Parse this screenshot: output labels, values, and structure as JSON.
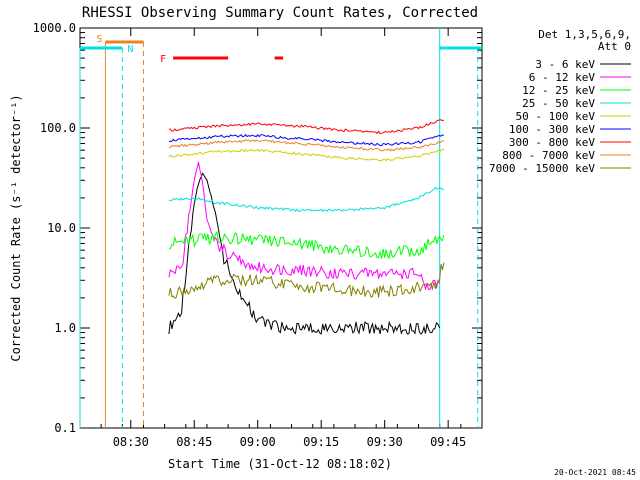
{
  "chart_data": {
    "type": "line",
    "title": "RHESSI Observing Summary Count Rates, Corrected",
    "ylabel": "Corrected Count Rate (s⁻¹ detector⁻¹)",
    "xlabel": "Start Time (31-Oct-12 08:18:02)",
    "xlim": [
      "08:18",
      "09:53"
    ],
    "ylim": [
      0.1,
      1000.0
    ],
    "yscale": "log",
    "x_ticks": [
      "08:30",
      "08:45",
      "09:00",
      "09:15",
      "09:30",
      "09:45"
    ],
    "y_ticks": [
      "0.1",
      "1.0",
      "10.0",
      "100.0",
      "1000.0"
    ],
    "legend_header": [
      "Det 1,3,5,6,9,",
      "Att 0"
    ],
    "legend_position": "top-right",
    "timestamp": "20-Oct-2021 08:45",
    "flags": [
      {
        "label": "S",
        "color": "#f08020"
      },
      {
        "label": "N",
        "color": "#00e0e0"
      },
      {
        "label": "F",
        "color": "#ff0000"
      }
    ],
    "series": [
      {
        "name": "3 - 6 keV",
        "color": "#000000",
        "x": [
          "08:39",
          "08:42",
          "08:44",
          "08:45",
          "08:46",
          "08:47",
          "08:48",
          "08:50",
          "08:52",
          "08:55",
          "08:58",
          "09:00",
          "09:05",
          "09:10",
          "09:20",
          "09:30",
          "09:40",
          "09:43"
        ],
        "y": [
          1.0,
          1.5,
          8,
          18,
          28,
          35,
          30,
          14,
          5,
          2.5,
          1.6,
          1.2,
          1.0,
          1.0,
          1.0,
          1.0,
          1.0,
          1.0
        ]
      },
      {
        "name": "6 - 12 keV",
        "color": "#ff00ff",
        "x": [
          "08:39",
          "08:42",
          "08:44",
          "08:45",
          "08:46",
          "08:47",
          "08:48",
          "08:50",
          "08:52",
          "08:55",
          "09:00",
          "09:10",
          "09:20",
          "09:30",
          "09:38",
          "09:40",
          "09:43"
        ],
        "y": [
          3.5,
          4,
          15,
          30,
          45,
          28,
          12,
          7,
          6,
          5,
          4,
          3.8,
          3.5,
          3.5,
          3.5,
          2.5,
          2.8
        ]
      },
      {
        "name": "12 - 25 keV",
        "color": "#00ff00",
        "x": [
          "08:39",
          "08:45",
          "08:50",
          "09:00",
          "09:10",
          "09:20",
          "09:30",
          "09:38",
          "09:42",
          "09:44"
        ],
        "y": [
          7,
          7.5,
          8,
          7.5,
          7,
          6,
          5.5,
          6,
          7.5,
          8.5
        ]
      },
      {
        "name": "25 - 50 keV",
        "color": "#00e0e0",
        "x": [
          "08:39",
          "08:45",
          "08:50",
          "09:00",
          "09:10",
          "09:20",
          "09:30",
          "09:38",
          "09:42",
          "09:44"
        ],
        "y": [
          19,
          20,
          18,
          16,
          15,
          15,
          16,
          20,
          25,
          24
        ]
      },
      {
        "name": "50 - 100 keV",
        "color": "#d0d000",
        "x": [
          "08:39",
          "08:45",
          "08:50",
          "09:00",
          "09:10",
          "09:20",
          "09:30",
          "09:38",
          "09:42",
          "09:44"
        ],
        "y": [
          52,
          55,
          58,
          60,
          55,
          50,
          48,
          52,
          58,
          60
        ]
      },
      {
        "name": "100 - 300 keV",
        "color": "#0000ff",
        "x": [
          "08:39",
          "08:45",
          "08:50",
          "09:00",
          "09:10",
          "09:20",
          "09:30",
          "09:38",
          "09:42",
          "09:44"
        ],
        "y": [
          75,
          78,
          82,
          84,
          78,
          72,
          68,
          72,
          80,
          85
        ]
      },
      {
        "name": "300 - 800 keV",
        "color": "#ff0000",
        "x": [
          "08:39",
          "08:45",
          "08:50",
          "09:00",
          "09:10",
          "09:20",
          "09:30",
          "09:38",
          "09:42",
          "09:44"
        ],
        "y": [
          95,
          100,
          105,
          110,
          104,
          95,
          90,
          100,
          115,
          120
        ]
      },
      {
        "name": "800 - 7000 keV",
        "color": "#f08020",
        "x": [
          "08:39",
          "08:45",
          "08:50",
          "09:00",
          "09:10",
          "09:20",
          "09:30",
          "09:38",
          "09:42",
          "09:44"
        ],
        "y": [
          65,
          68,
          72,
          75,
          70,
          64,
          60,
          64,
          70,
          75
        ]
      },
      {
        "name": "7000 - 15000 keV",
        "color": "#808000",
        "x": [
          "08:39",
          "08:45",
          "08:50",
          "09:00",
          "09:10",
          "09:20",
          "09:30",
          "09:38",
          "09:42",
          "09:44"
        ],
        "y": [
          2.2,
          2.5,
          3,
          3,
          2.6,
          2.4,
          2.3,
          2.5,
          2.8,
          4.5
        ]
      }
    ]
  }
}
